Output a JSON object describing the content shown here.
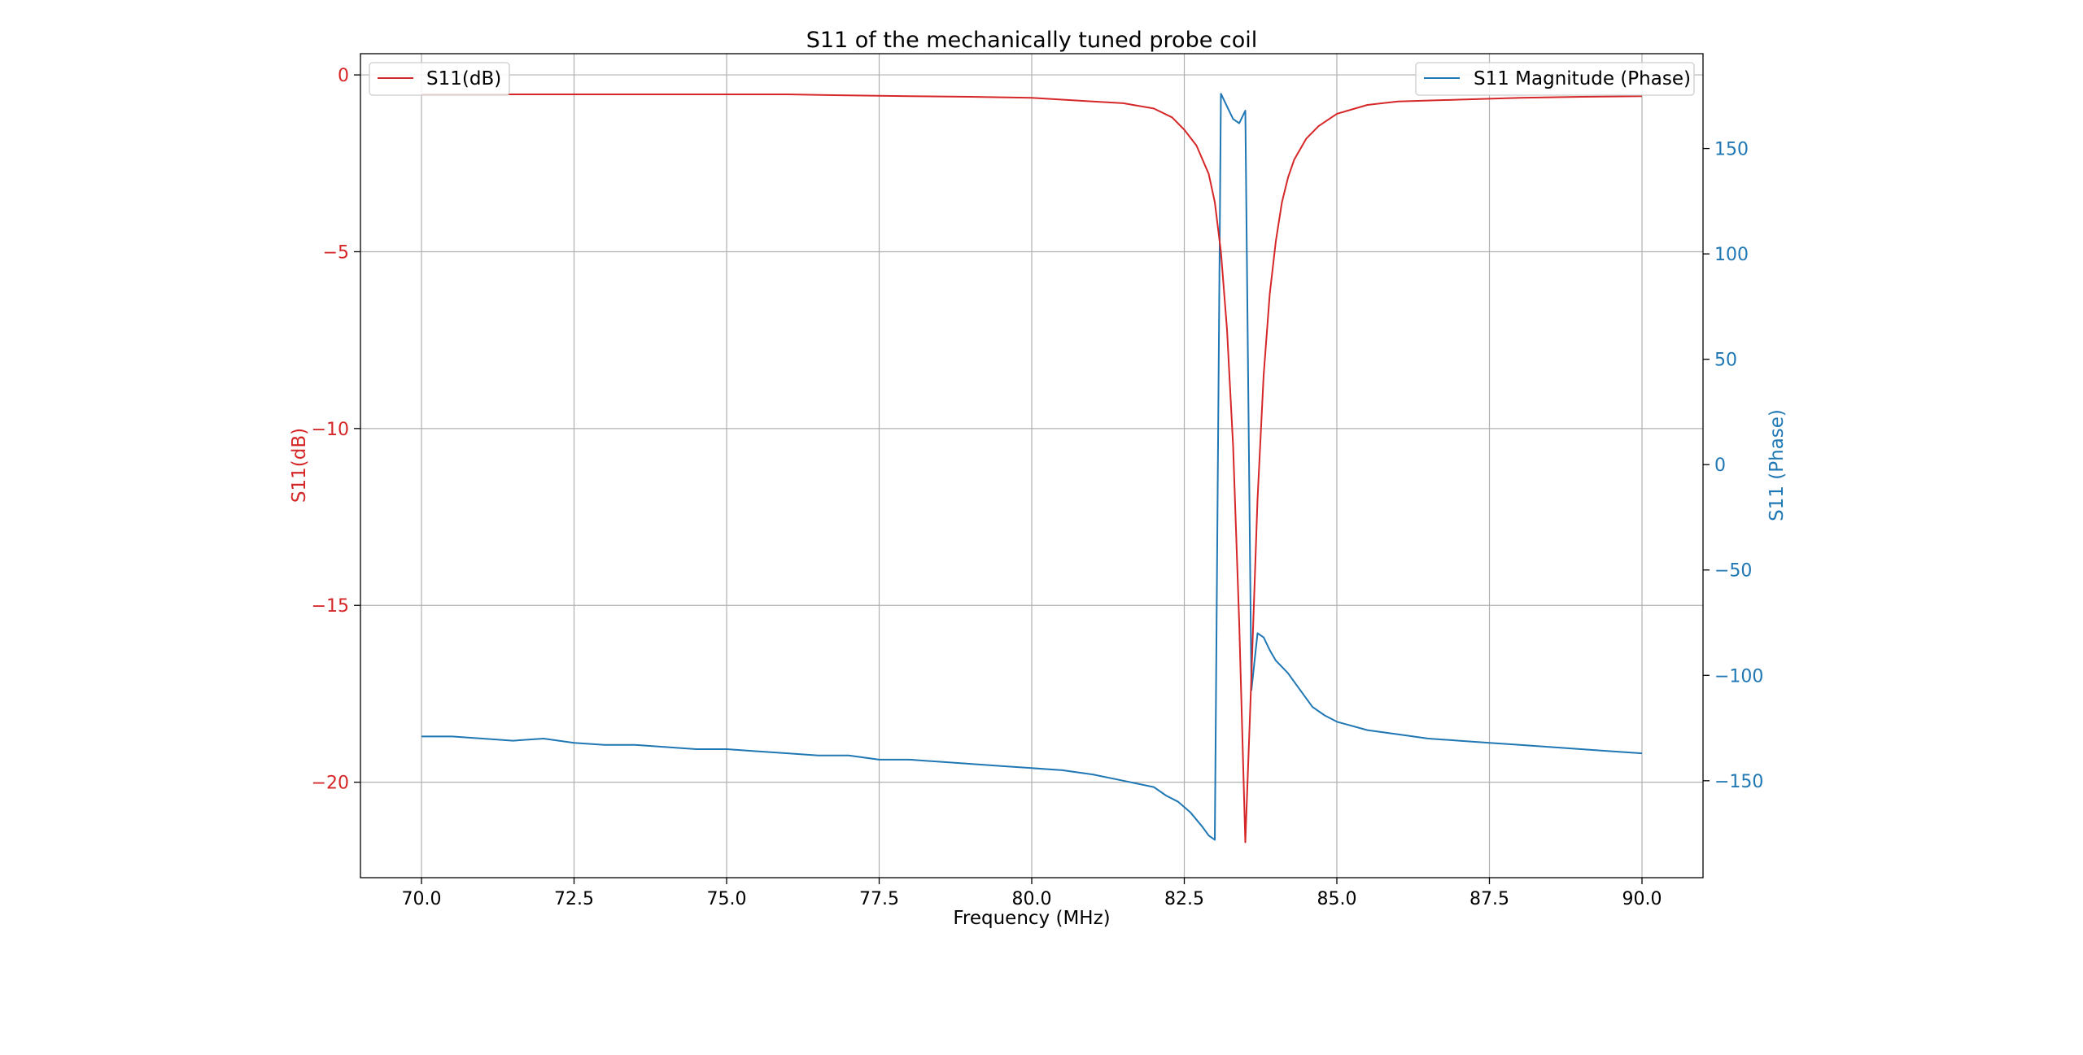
{
  "chart_data": {
    "type": "line",
    "title": "S11 of the mechanically tuned probe coil",
    "xlabel": "Frequency (MHz)",
    "ylabel_left": "S11(dB)",
    "ylabel_right": "S11 (Phase)",
    "xlim": [
      69.0,
      91.0
    ],
    "ylim_left": [
      -22.7,
      0.6
    ],
    "ylim_right": [
      -196,
      195
    ],
    "x_ticks": [
      70.0,
      72.5,
      75.0,
      77.5,
      80.0,
      82.5,
      85.0,
      87.5,
      90.0
    ],
    "x_tick_labels": [
      "70.0",
      "72.5",
      "75.0",
      "77.5",
      "80.0",
      "82.5",
      "85.0",
      "87.5",
      "90.0"
    ],
    "y_left_ticks": [
      0,
      -5,
      -10,
      -15,
      -20
    ],
    "y_left_tick_labels": [
      "0",
      "−5",
      "−10",
      "−15",
      "−20"
    ],
    "y_right_ticks": [
      150,
      100,
      50,
      0,
      -50,
      -100,
      -150
    ],
    "y_right_tick_labels": [
      "150",
      "100",
      "50",
      "0",
      "−50",
      "−100",
      "−150"
    ],
    "grid": true,
    "colors": {
      "left": "#d62728",
      "right": "#1f77b4"
    },
    "legends": [
      {
        "text": "S11(dB)",
        "placement": "upper left",
        "color": "#d62728"
      },
      {
        "text": "S11 Magnitude (Phase)",
        "placement": "upper right",
        "color": "#1f77b4"
      }
    ],
    "series": [
      {
        "name": "S11(dB)",
        "axis": "left",
        "color": "#d62728",
        "x": [
          70.0,
          71.0,
          72.0,
          73.0,
          74.0,
          75.0,
          76.0,
          77.0,
          78.0,
          79.0,
          80.0,
          80.5,
          81.0,
          81.5,
          82.0,
          82.3,
          82.5,
          82.7,
          82.9,
          83.0,
          83.1,
          83.2,
          83.3,
          83.4,
          83.5,
          83.6,
          83.7,
          83.8,
          83.9,
          84.0,
          84.1,
          84.2,
          84.3,
          84.5,
          84.7,
          85.0,
          85.5,
          86.0,
          87.0,
          88.0,
          89.0,
          90.0
        ],
        "y": [
          -0.55,
          -0.55,
          -0.55,
          -0.55,
          -0.55,
          -0.55,
          -0.55,
          -0.58,
          -0.6,
          -0.62,
          -0.65,
          -0.7,
          -0.75,
          -0.8,
          -0.95,
          -1.2,
          -1.55,
          -2.0,
          -2.8,
          -3.6,
          -5.0,
          -7.2,
          -10.5,
          -15.5,
          -21.7,
          -17.0,
          -12.0,
          -8.5,
          -6.2,
          -4.7,
          -3.6,
          -2.9,
          -2.4,
          -1.8,
          -1.45,
          -1.1,
          -0.85,
          -0.75,
          -0.7,
          -0.65,
          -0.62,
          -0.6
        ]
      },
      {
        "name": "S11 Magnitude (Phase)",
        "axis": "right",
        "color": "#1f77b4",
        "x": [
          70.0,
          70.5,
          71.0,
          71.5,
          72.0,
          72.5,
          73.0,
          73.5,
          74.0,
          74.5,
          75.0,
          75.5,
          76.0,
          76.5,
          77.0,
          77.5,
          78.0,
          78.5,
          79.0,
          79.5,
          80.0,
          80.5,
          81.0,
          81.5,
          82.0,
          82.2,
          82.4,
          82.6,
          82.8,
          82.9,
          83.0,
          83.1,
          83.2,
          83.3,
          83.4,
          83.5,
          83.6,
          83.7,
          83.8,
          83.9,
          84.0,
          84.2,
          84.4,
          84.6,
          84.8,
          85.0,
          85.5,
          86.0,
          86.5,
          87.0,
          87.5,
          88.0,
          88.5,
          89.0,
          89.5,
          90.0
        ],
        "y": [
          -129,
          -129,
          -130,
          -131,
          -130,
          -132,
          -133,
          -133,
          -134,
          -135,
          -135,
          -136,
          -137,
          -138,
          -138,
          -140,
          -140,
          -141,
          -142,
          -143,
          -144,
          -145,
          -147,
          -150,
          -153,
          -157,
          -160,
          -165,
          -172,
          -176,
          -178,
          176,
          170,
          164,
          162,
          168,
          -107,
          -80,
          -82,
          -88,
          -93,
          -99,
          -107,
          -115,
          -119,
          -122,
          -126,
          -128,
          -130,
          -131,
          -132,
          -133,
          -134,
          -135,
          -136,
          -137
        ]
      }
    ]
  }
}
